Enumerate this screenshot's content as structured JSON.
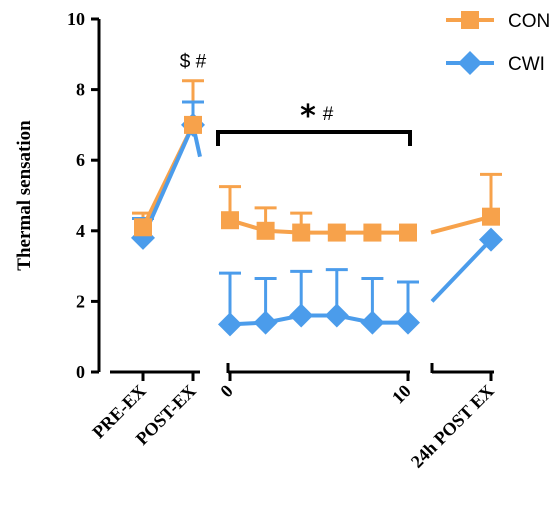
{
  "chart_data": {
    "type": "line",
    "title": "",
    "ylabel": "Thermal sensation",
    "ylim": [
      0,
      10
    ],
    "yticks": [
      0,
      2,
      4,
      6,
      8,
      10
    ],
    "grid": false,
    "legend_position": "top-right",
    "panels": [
      {
        "id": "pre-post",
        "ticks": [
          {
            "x": 0,
            "label": "PRE-EX"
          },
          {
            "x": 1,
            "label": "POST-EX"
          }
        ]
      },
      {
        "id": "recovery",
        "ticks": [
          {
            "x": 0,
            "label": "0"
          },
          {
            "x": 10,
            "label": "10"
          }
        ]
      },
      {
        "id": "24h",
        "ticks": [
          {
            "x": 0,
            "label": "24h POST EX"
          }
        ]
      }
    ],
    "series": [
      {
        "name": "CON",
        "color": "#F7A24B",
        "marker": "square",
        "error_direction": "up",
        "segments": [
          {
            "panel": "pre-post",
            "points": [
              {
                "x": 0,
                "y": 4.1,
                "err": 0.4
              },
              {
                "x": 1,
                "y": 7.0,
                "err": 1.25
              }
            ]
          },
          {
            "panel": "recovery",
            "points": [
              {
                "x": 0,
                "y": 4.3,
                "err": 0.95
              },
              {
                "x": 2,
                "y": 4.0,
                "err": 0.65
              },
              {
                "x": 4,
                "y": 3.95,
                "err": 0.55
              },
              {
                "x": 6,
                "y": 3.95,
                "err": 0
              },
              {
                "x": 8,
                "y": 3.95,
                "err": 0
              },
              {
                "x": 10,
                "y": 3.95,
                "err": 0
              }
            ]
          },
          {
            "panel": "24h",
            "points": [
              {
                "x": 0,
                "y": 4.4,
                "err": 1.2
              }
            ]
          }
        ]
      },
      {
        "name": "CWI",
        "color": "#4B9CEB",
        "marker": "diamond",
        "error_direction": "up",
        "segments": [
          {
            "panel": "pre-post",
            "points": [
              {
                "x": 0,
                "y": 3.8,
                "err": 0.55
              },
              {
                "x": 1,
                "y": 7.0,
                "err": 0.65
              }
            ]
          },
          {
            "panel": "recovery",
            "points": [
              {
                "x": 0,
                "y": 1.35,
                "err": 1.45
              },
              {
                "x": 2,
                "y": 1.4,
                "err": 1.25
              },
              {
                "x": 4,
                "y": 1.6,
                "err": 1.25
              },
              {
                "x": 6,
                "y": 1.6,
                "err": 1.3
              },
              {
                "x": 8,
                "y": 1.4,
                "err": 1.25
              },
              {
                "x": 10,
                "y": 1.4,
                "err": 1.15
              }
            ]
          },
          {
            "panel": "24h",
            "points": [
              {
                "x": 0,
                "y": 3.75,
                "err": 0
              }
            ]
          }
        ]
      }
    ],
    "annotations": [
      {
        "text": "$ #",
        "panel": "pre-post",
        "x": 1,
        "y": 8.8
      },
      {
        "text": "*",
        "text2": "#",
        "panel": "recovery",
        "bracket_from": 0,
        "bracket_to": 10,
        "y": 6.8
      }
    ]
  }
}
